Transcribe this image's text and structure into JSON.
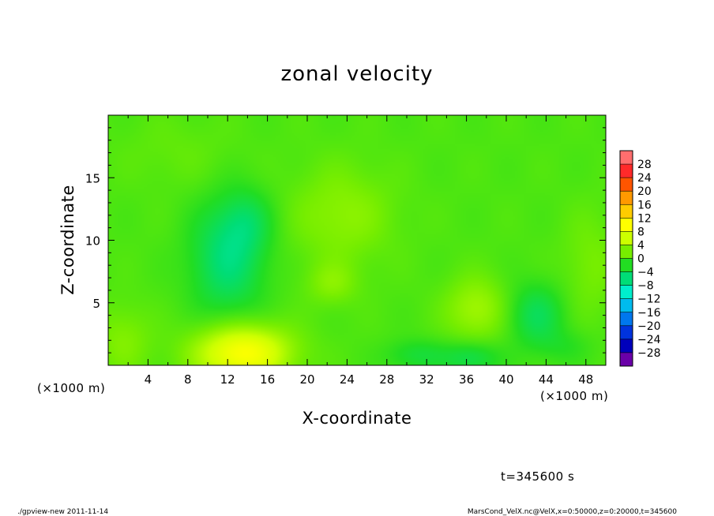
{
  "chart_data": {
    "type": "heatmap",
    "title": "zonal velocity",
    "xlabel": "X-coordinate",
    "ylabel": "Z-coordinate",
    "x_unit_left": "(×1000 m)",
    "x_unit_right": "(×1000 m)",
    "xlim": [
      0,
      50
    ],
    "ylim": [
      0,
      20
    ],
    "x_ticks": [
      4,
      8,
      12,
      16,
      20,
      24,
      28,
      32,
      36,
      40,
      44,
      48
    ],
    "y_ticks": [
      5,
      10,
      15
    ],
    "colorbar": {
      "levels": [
        28,
        24,
        20,
        16,
        12,
        8,
        4,
        0,
        -4,
        -8,
        -12,
        -16,
        -20,
        -24,
        -28
      ],
      "tick_labels": [
        "28",
        "24",
        "20",
        "16",
        "12",
        "8",
        "4",
        "0",
        "−4",
        "−8",
        "−12",
        "−16",
        "−20",
        "−24",
        "−28"
      ],
      "colors": [
        "#ff6e6e",
        "#ff2a2a",
        "#ff5500",
        "#ff9900",
        "#ffcc00",
        "#ffff00",
        "#ccff00",
        "#77ee00",
        "#22dd22",
        "#00dd77",
        "#00eecc",
        "#00bbee",
        "#0077ee",
        "#0033dd",
        "#0000bb",
        "#6a00a8"
      ]
    },
    "blobs": [
      {
        "x": 13.5,
        "z": 1.0,
        "sx": 3.4,
        "sz": 1.6,
        "value": 10
      },
      {
        "x": 12.0,
        "z": 8.5,
        "sx": 2.6,
        "sz": 3.2,
        "value": -6
      },
      {
        "x": 14.0,
        "z": 11.5,
        "sx": 1.8,
        "sz": 1.8,
        "value": -3
      },
      {
        "x": 23.5,
        "z": 12.0,
        "sx": 3.6,
        "sz": 2.8,
        "value": 3
      },
      {
        "x": 22.5,
        "z": 6.5,
        "sx": 1.8,
        "sz": 1.2,
        "value": 2.5
      },
      {
        "x": 37.0,
        "z": 4.5,
        "sx": 2.2,
        "sz": 1.8,
        "value": 4
      },
      {
        "x": 43.0,
        "z": 4.0,
        "sx": 2.0,
        "sz": 1.8,
        "value": -4.5
      },
      {
        "x": 36.5,
        "z": 0.6,
        "sx": 2.0,
        "sz": 0.9,
        "value": -4
      },
      {
        "x": 31.0,
        "z": 0.8,
        "sx": 2.2,
        "sz": 0.9,
        "value": -3
      },
      {
        "x": 1.5,
        "z": 2.0,
        "sx": 2.0,
        "sz": 2.0,
        "value": 2.5
      },
      {
        "x": 48.5,
        "z": 8.0,
        "sx": 2.0,
        "sz": 3.0,
        "value": 2
      },
      {
        "x": 7.0,
        "z": 17.0,
        "sx": 4.0,
        "sz": 2.0,
        "value": 1
      },
      {
        "x": 46.0,
        "z": 1.5,
        "sx": 2.0,
        "sz": 1.0,
        "value": -1.5
      }
    ],
    "time_label": "t=345600 s"
  },
  "footer": {
    "left": "./gpview-new  2011-11-14",
    "right": "MarsCond_VelX.nc@VelX,x=0:50000,z=0:20000,t=345600"
  }
}
